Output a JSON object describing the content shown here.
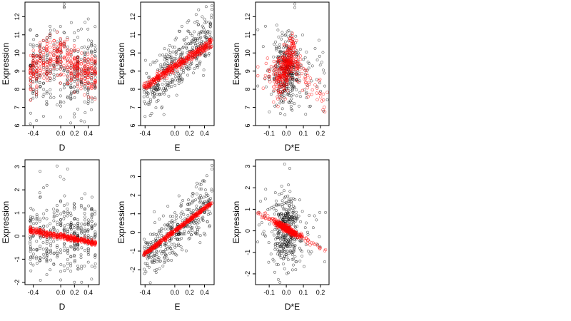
{
  "chart_data": [
    {
      "type": "scatter",
      "panel": "top-left",
      "xlabel": "D",
      "ylabel": "Expression",
      "xlim": [
        -0.52,
        0.56
      ],
      "ylim": [
        6,
        12.8
      ],
      "xticks": [
        -0.4,
        0.0,
        0.2,
        0.4
      ],
      "xtick_labels": [
        "-0.4",
        "0.0",
        "0.2",
        "0.4"
      ],
      "yticks": [
        6,
        7,
        8,
        9,
        10,
        11,
        12
      ],
      "ytick_labels": [
        "6",
        "7",
        "8",
        "9",
        "10",
        "11",
        "12"
      ],
      "observed": {
        "color": "#000000",
        "description": "black open circles"
      },
      "fitted": {
        "color": "#ff0000",
        "description": "red open circles"
      },
      "gen": {
        "xs": [
          -0.44,
          -0.4,
          -0.35,
          -0.3,
          -0.25,
          -0.2,
          -0.15,
          -0.1,
          -0.05,
          0.0,
          0.05,
          0.1,
          0.15,
          0.2,
          0.25,
          0.3,
          0.35,
          0.4,
          0.45,
          0.5
        ],
        "xmode": "columns",
        "n": 380,
        "xjitter": 0.006,
        "obs_center": [
          9.0,
          0.0
        ],
        "obs_sd": 1.05,
        "fit_sd": 0.6,
        "fit_y": [
          [
            -0.44,
            8.9
          ],
          [
            -0.3,
            9.3
          ],
          [
            -0.15,
            9.8
          ],
          [
            0.0,
            9.9
          ],
          [
            0.1,
            9.6
          ],
          [
            0.2,
            9.2
          ],
          [
            0.35,
            8.9
          ],
          [
            0.5,
            8.9
          ]
        ],
        "outliers": [
          [
            0.05,
            12.5
          ],
          [
            0.05,
            12.7
          ],
          [
            0.05,
            12.55
          ]
        ]
      }
    },
    {
      "type": "scatter",
      "panel": "top-middle",
      "xlabel": "E",
      "ylabel": "Expression",
      "xlim": [
        -0.46,
        0.53
      ],
      "ylim": [
        6,
        12.8
      ],
      "xticks": [
        -0.4,
        0.0,
        0.2,
        0.4
      ],
      "xtick_labels": [
        "-0.4",
        "0.0",
        "0.2",
        "0.4"
      ],
      "yticks": [
        6,
        7,
        8,
        9,
        10,
        11,
        12
      ],
      "ytick_labels": [
        "6",
        "7",
        "8",
        "9",
        "10",
        "11",
        "12"
      ],
      "observed": {
        "color": "#000000",
        "description": "black open circles"
      },
      "fitted": {
        "color": "#ff0000",
        "description": "red open circles"
      },
      "gen": {
        "xmode": "uniform",
        "xrange": [
          -0.42,
          0.5
        ],
        "n": 380,
        "obs_center": [
          9.3,
          3.6
        ],
        "obs_sd": 0.75,
        "fit_sd": 0.12,
        "fit_y": [
          [
            -0.42,
            8.1
          ],
          [
            0.5,
            10.6
          ]
        ],
        "outliers": [
          [
            0.5,
            12.6
          ],
          [
            0.5,
            12.4
          ],
          [
            -0.4,
            6.5
          ]
        ]
      }
    },
    {
      "type": "scatter",
      "panel": "top-right",
      "xlabel": "D*E",
      "ylabel": "Expression",
      "xlim": [
        -0.18,
        0.25
      ],
      "ylim": [
        6,
        12.8
      ],
      "xticks": [
        -0.1,
        0.0,
        0.1,
        0.2
      ],
      "xtick_labels": [
        "-0.1",
        "0.0",
        "0.1",
        "0.2"
      ],
      "yticks": [
        6,
        7,
        8,
        9,
        10,
        11,
        12
      ],
      "ytick_labels": [
        "6",
        "7",
        "8",
        "9",
        "10",
        "11",
        "12"
      ],
      "observed": {
        "color": "#000000",
        "description": "black open circles"
      },
      "fitted": {
        "color": "#ff0000",
        "description": "red open circles"
      },
      "gen": {
        "xmode": "centered",
        "xcenter": 0.0,
        "xsd": 0.04,
        "xrange": [
          -0.17,
          0.24
        ],
        "n": 380,
        "obs_center": [
          9.1,
          0.0
        ],
        "obs_sd": 1.0,
        "fit_sd": 0.55,
        "fit_y": [
          [
            -0.17,
            8.8
          ],
          [
            -0.05,
            8.6
          ],
          [
            0.0,
            9.2
          ],
          [
            0.04,
            10.0
          ],
          [
            0.08,
            9.0
          ],
          [
            0.15,
            8.1
          ],
          [
            0.24,
            7.2
          ]
        ],
        "outliers": [
          [
            0.05,
            12.5
          ],
          [
            0.05,
            12.7
          ]
        ]
      }
    },
    {
      "type": "scatter",
      "panel": "bottom-left",
      "xlabel": "D",
      "ylabel": "Expression",
      "xlim": [
        -0.52,
        0.56
      ],
      "ylim": [
        -2.1,
        3.3
      ],
      "xticks": [
        -0.4,
        0.0,
        0.2,
        0.4
      ],
      "xtick_labels": [
        "-0.4",
        "0.0",
        "0.2",
        "0.4"
      ],
      "yticks": [
        -2,
        -1,
        0,
        1,
        2,
        3
      ],
      "ytick_labels": [
        "-2",
        "-1",
        "0",
        "1",
        "2",
        "3"
      ],
      "observed": {
        "color": "#000000",
        "description": "black open circles"
      },
      "fitted": {
        "color": "#ff0000",
        "description": "red open circles"
      },
      "gen": {
        "xs": [
          -0.44,
          -0.4,
          -0.35,
          -0.3,
          -0.25,
          -0.2,
          -0.15,
          -0.1,
          -0.05,
          0.0,
          0.05,
          0.1,
          0.15,
          0.2,
          0.25,
          0.3,
          0.35,
          0.4,
          0.45,
          0.5
        ],
        "xmode": "columns",
        "n": 380,
        "xjitter": 0.006,
        "obs_center": [
          0.0,
          0.0
        ],
        "obs_sd": 0.85,
        "fit_sd": 0.06,
        "fit_y": [
          [
            -0.44,
            0.25
          ],
          [
            0.5,
            -0.3
          ]
        ],
        "outliers": [
          [
            0.1,
            2.9
          ],
          [
            -0.3,
            2.8
          ]
        ]
      }
    },
    {
      "type": "scatter",
      "panel": "bottom-middle",
      "xlabel": "E",
      "ylabel": "Expression",
      "xlim": [
        -0.46,
        0.53
      ],
      "ylim": [
        -2.8,
        3.9
      ],
      "xticks": [
        -0.4,
        0.0,
        0.2,
        0.4
      ],
      "xtick_labels": [
        "-0.4",
        "0.0",
        "0.2",
        "0.4"
      ],
      "yticks": [
        -2,
        -1,
        0,
        1,
        2,
        3
      ],
      "ytick_labels": [
        "-2",
        "-1",
        "0",
        "1",
        "2",
        "3"
      ],
      "observed": {
        "color": "#000000",
        "description": "black open circles"
      },
      "fitted": {
        "color": "#ff0000",
        "description": "red open circles"
      },
      "gen": {
        "xmode": "uniform",
        "xrange": [
          -0.42,
          0.5
        ],
        "n": 380,
        "obs_center": [
          0.0,
          3.4
        ],
        "obs_sd": 0.7,
        "fit_sd": 0.05,
        "fit_y": [
          [
            -0.42,
            -1.2
          ],
          [
            0.5,
            1.6
          ]
        ],
        "outliers": [
          [
            0.5,
            3.6
          ],
          [
            0.5,
            3.4
          ]
        ]
      }
    },
    {
      "type": "scatter",
      "panel": "bottom-right",
      "xlabel": "D*E",
      "ylabel": "Expression",
      "xlim": [
        -0.18,
        0.25
      ],
      "ylim": [
        -2.5,
        3.3
      ],
      "xticks": [
        -0.1,
        0.0,
        0.1,
        0.2
      ],
      "xtick_labels": [
        "-0.1",
        "0.0",
        "0.1",
        "0.2"
      ],
      "yticks": [
        -2,
        -1,
        0,
        1,
        2,
        3
      ],
      "ytick_labels": [
        "-2",
        "-1",
        "0",
        "1",
        "2",
        "3"
      ],
      "observed": {
        "color": "#000000",
        "description": "black open circles"
      },
      "fitted": {
        "color": "#ff0000",
        "description": "red open circles"
      },
      "gen": {
        "xmode": "centered",
        "xcenter": 0.0,
        "xsd": 0.04,
        "xrange": [
          -0.17,
          0.24
        ],
        "n": 380,
        "obs_center": [
          0.0,
          0.0
        ],
        "obs_sd": 0.8,
        "fit_sd": 0.08,
        "fit_y": [
          [
            -0.17,
            0.85
          ],
          [
            0.0,
            0.1
          ],
          [
            0.24,
            -0.95
          ]
        ],
        "outliers": [
          [
            -0.01,
            3.1
          ],
          [
            0.02,
            2.9
          ]
        ]
      }
    }
  ]
}
